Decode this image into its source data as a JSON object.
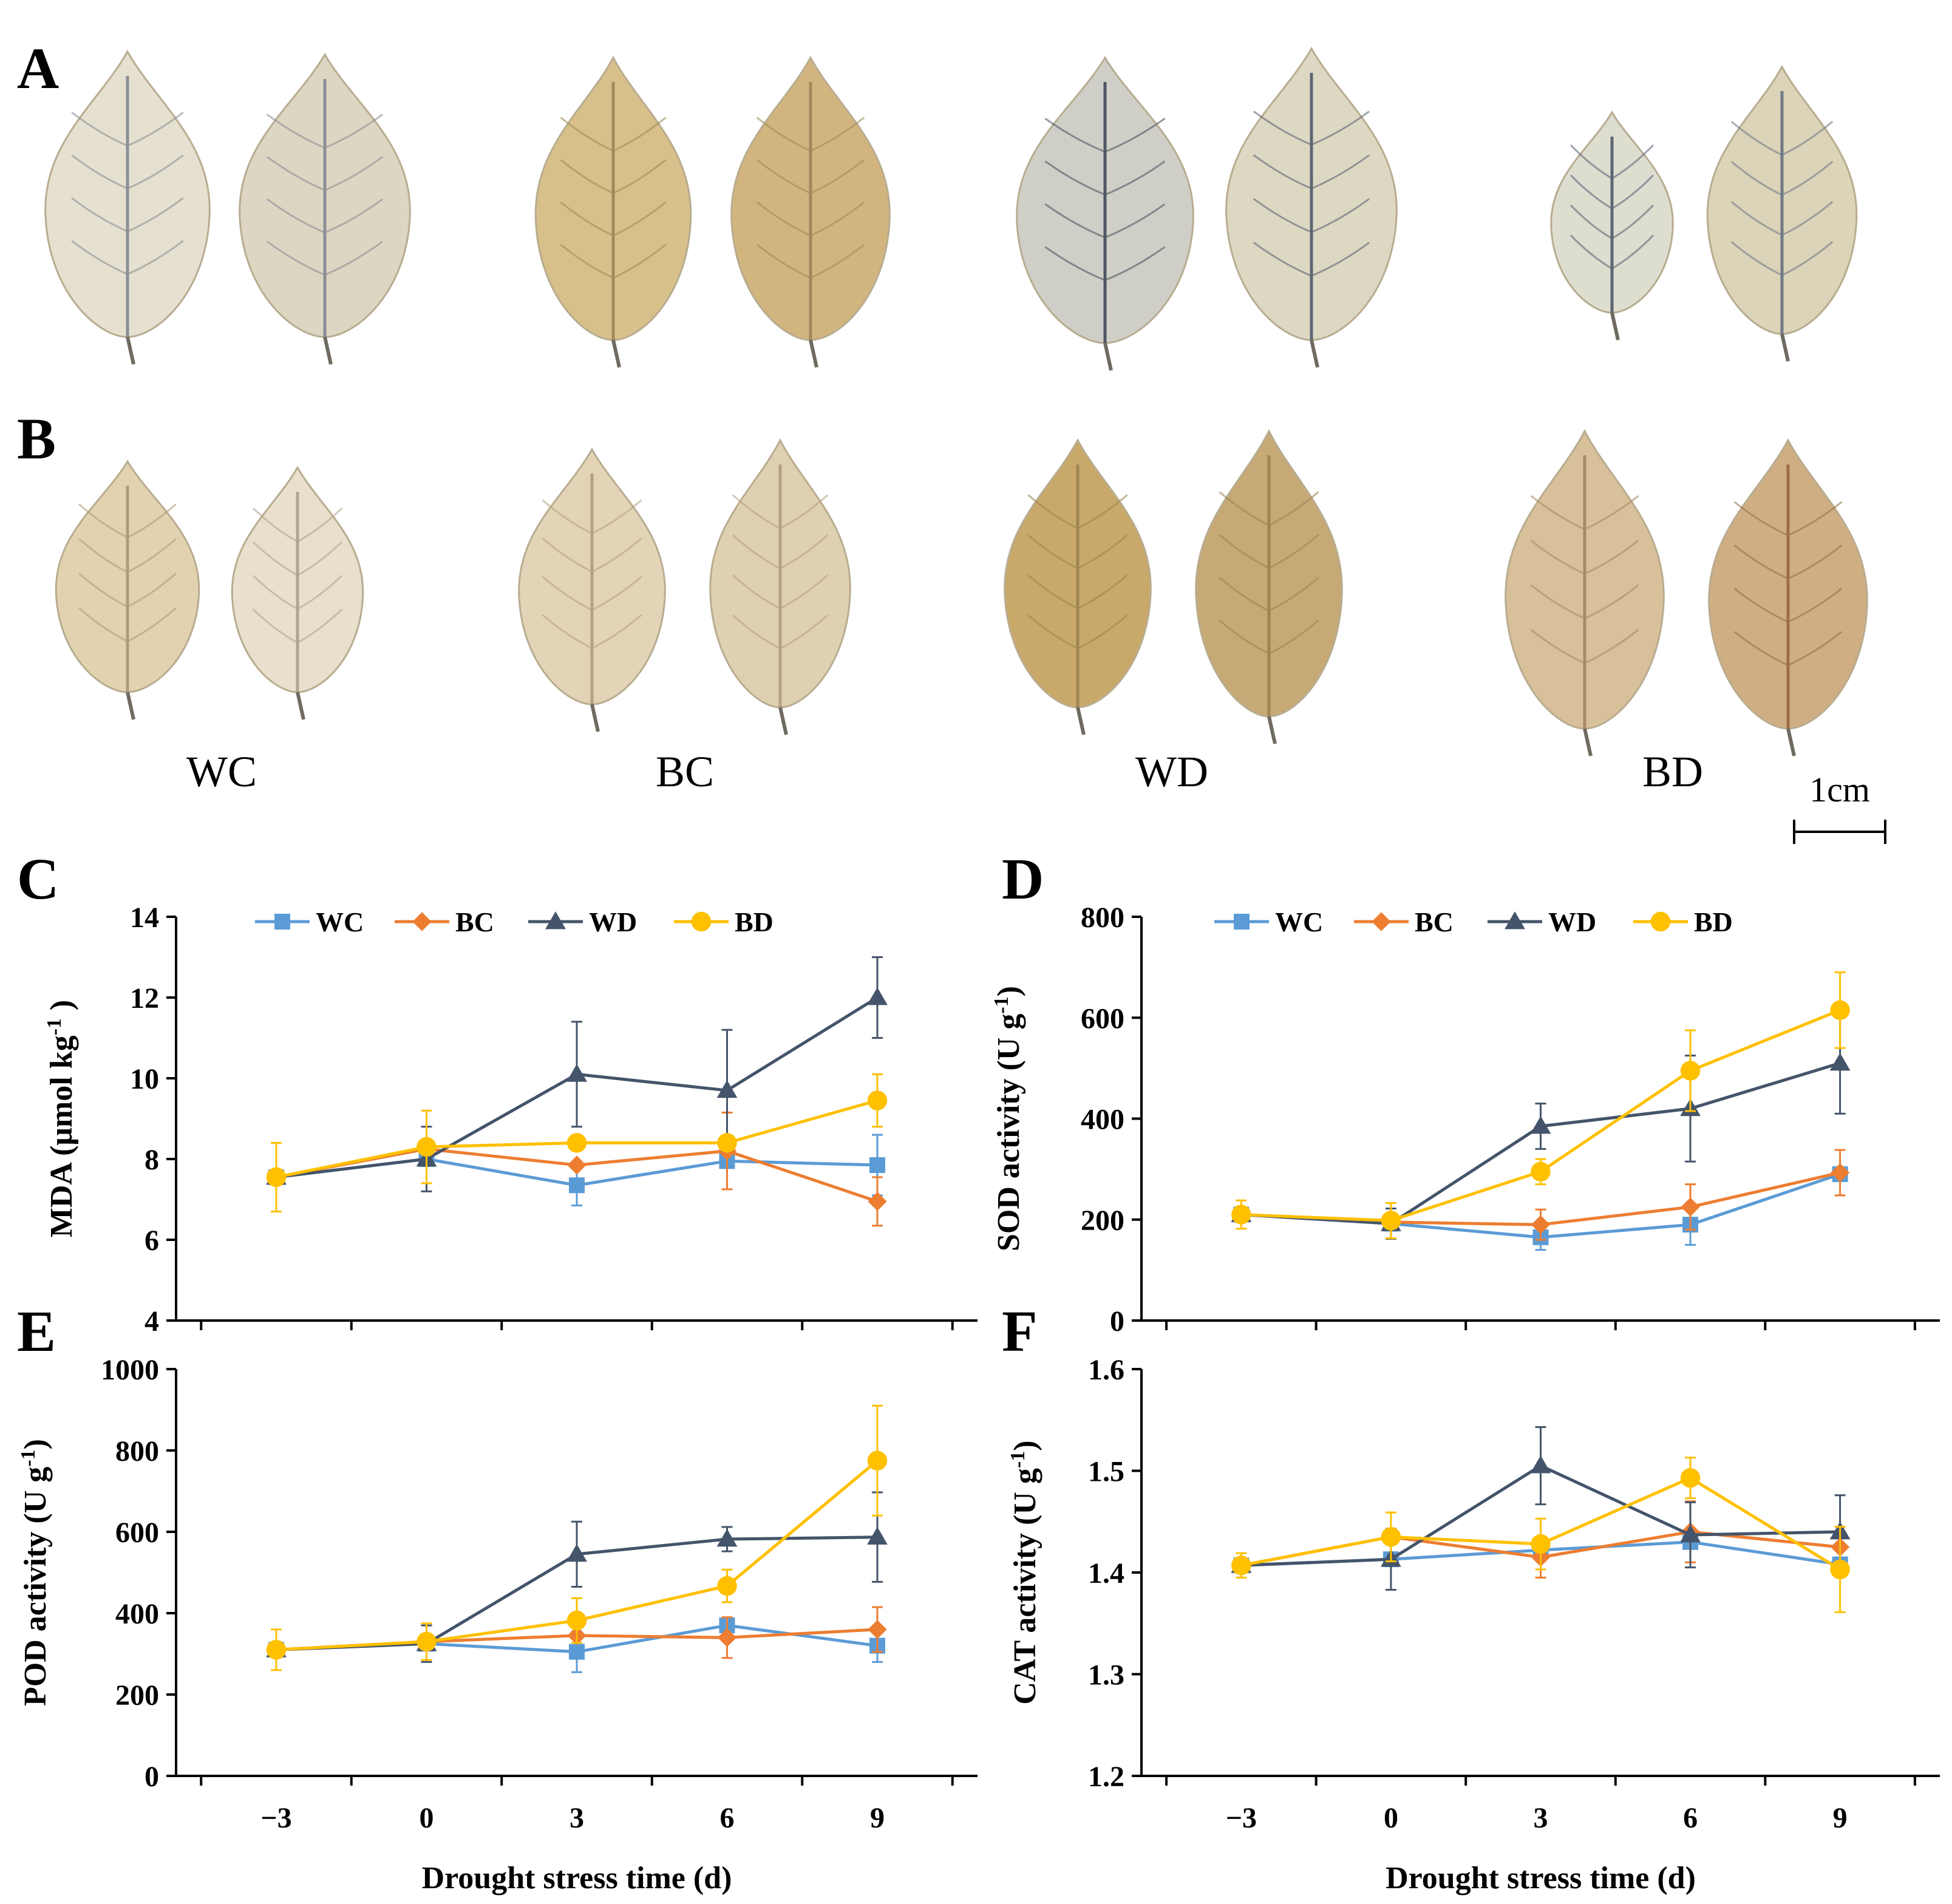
{
  "panels": {
    "A": "A",
    "B": "B",
    "C": "C",
    "D": "D",
    "E": "E",
    "F": "F"
  },
  "leaf_groups": [
    "WC",
    "BC",
    "WD",
    "BD"
  ],
  "scale_bar": {
    "label": "1cm"
  },
  "colors": {
    "WC": "#5B9BD5",
    "BC": "#ED7D31",
    "WD": "#44546A",
    "BD": "#FFC000"
  },
  "chart_data": [
    {
      "panel": "C",
      "type": "line",
      "title": "",
      "xlabel": "",
      "ylabel": "MDA (μmol kg⁻¹ )",
      "ylabel_parts": {
        "pre": "MDA (μmol kg",
        "sup": "-1",
        "post": " )"
      },
      "x": [
        -3,
        0,
        3,
        6,
        9
      ],
      "x_tick_labels": [
        "",
        "",
        "",
        "",
        ""
      ],
      "ylim": [
        4,
        14
      ],
      "y_ticks": [
        4,
        6,
        8,
        10,
        12,
        14
      ],
      "legend": [
        "WC",
        "BC",
        "WD",
        "BD"
      ],
      "legend_position": "top",
      "series": [
        {
          "name": "WC",
          "values": [
            7.55,
            8.0,
            7.35,
            7.95,
            7.85
          ],
          "errors": [
            0.0,
            0.0,
            0.5,
            0.0,
            0.75
          ]
        },
        {
          "name": "BC",
          "values": [
            7.55,
            8.25,
            7.85,
            8.2,
            6.95
          ],
          "errors": [
            0.0,
            0.0,
            0.0,
            0.95,
            0.6
          ]
        },
        {
          "name": "WD",
          "values": [
            7.55,
            8.0,
            10.1,
            9.7,
            12.0
          ],
          "errors": [
            0.0,
            0.8,
            1.3,
            1.5,
            1.0
          ]
        },
        {
          "name": "BD",
          "values": [
            7.55,
            8.3,
            8.4,
            8.4,
            9.45
          ],
          "errors": [
            0.85,
            0.9,
            0.0,
            0.0,
            0.65
          ]
        }
      ]
    },
    {
      "panel": "D",
      "type": "line",
      "title": "",
      "xlabel": "",
      "ylabel": "SOD activity (U g⁻¹)",
      "ylabel_parts": {
        "pre": "SOD activity (U g",
        "sup": "-1",
        "post": ")"
      },
      "x": [
        -3,
        0,
        3,
        6,
        9
      ],
      "x_tick_labels": [
        "",
        "",
        "",
        "",
        ""
      ],
      "ylim": [
        0,
        800
      ],
      "y_ticks": [
        0,
        200,
        400,
        600,
        800
      ],
      "legend": [
        "WC",
        "BC",
        "WD",
        "BD"
      ],
      "legend_position": "top",
      "series": [
        {
          "name": "WC",
          "values": [
            210,
            192,
            165,
            190,
            290
          ],
          "errors": [
            0,
            0,
            25,
            40,
            0
          ]
        },
        {
          "name": "BC",
          "values": [
            210,
            195,
            190,
            225,
            293
          ],
          "errors": [
            0,
            0,
            30,
            45,
            45
          ]
        },
        {
          "name": "WD",
          "values": [
            210,
            192,
            385,
            420,
            510
          ],
          "errors": [
            0,
            30,
            45,
            105,
            100
          ]
        },
        {
          "name": "BD",
          "values": [
            210,
            198,
            295,
            495,
            615
          ],
          "errors": [
            28,
            35,
            25,
            80,
            75
          ]
        }
      ]
    },
    {
      "panel": "E",
      "type": "line",
      "title": "",
      "xlabel": "Drought stress time (d)",
      "ylabel": "POD activity (U g⁻¹)",
      "ylabel_parts": {
        "pre": "POD activity (U g",
        "sup": "-1",
        "post": ")"
      },
      "x": [
        -3,
        0,
        3,
        6,
        9
      ],
      "x_tick_labels": [
        "−3",
        "0",
        "3",
        "6",
        "9"
      ],
      "ylim": [
        0,
        1000
      ],
      "y_ticks": [
        0,
        200,
        400,
        600,
        800,
        1000
      ],
      "legend": [],
      "series": [
        {
          "name": "WC",
          "values": [
            310,
            325,
            305,
            370,
            320
          ],
          "errors": [
            0,
            0,
            50,
            0,
            40
          ]
        },
        {
          "name": "BC",
          "values": [
            310,
            330,
            345,
            340,
            360
          ],
          "errors": [
            0,
            0,
            0,
            50,
            55
          ]
        },
        {
          "name": "WD",
          "values": [
            310,
            325,
            545,
            582,
            587
          ],
          "errors": [
            0,
            45,
            80,
            30,
            110
          ]
        },
        {
          "name": "BD",
          "values": [
            310,
            330,
            382,
            467,
            775
          ],
          "errors": [
            50,
            45,
            55,
            40,
            135
          ]
        }
      ]
    },
    {
      "panel": "F",
      "type": "line",
      "title": "",
      "xlabel": "Drought stress time (d)",
      "ylabel": "CAT activity (U g⁻¹)",
      "ylabel_parts": {
        "pre": "CAT activity (U g",
        "sup": "-1",
        "post": ")"
      },
      "x": [
        -3,
        0,
        3,
        6,
        9
      ],
      "x_tick_labels": [
        "−3",
        "0",
        "3",
        "6",
        "9"
      ],
      "ylim": [
        1.2,
        1.6
      ],
      "y_ticks": [
        1.2,
        1.3,
        1.4,
        1.5,
        1.6
      ],
      "legend": [],
      "series": [
        {
          "name": "WC",
          "values": [
            1.407,
            1.413,
            1.422,
            1.43,
            1.408
          ],
          "errors": [
            0,
            0,
            0,
            0,
            0
          ]
        },
        {
          "name": "BC",
          "values": [
            1.407,
            1.435,
            1.415,
            1.44,
            1.425
          ],
          "errors": [
            0,
            0,
            0.02,
            0.03,
            0.02
          ]
        },
        {
          "name": "WD",
          "values": [
            1.407,
            1.413,
            1.505,
            1.437,
            1.44
          ],
          "errors": [
            0,
            0.03,
            0.038,
            0.032,
            0.036
          ]
        },
        {
          "name": "BD",
          "values": [
            1.407,
            1.435,
            1.428,
            1.493,
            1.403
          ],
          "errors": [
            0.012,
            0.024,
            0.025,
            0.02,
            0.042
          ]
        }
      ]
    }
  ]
}
